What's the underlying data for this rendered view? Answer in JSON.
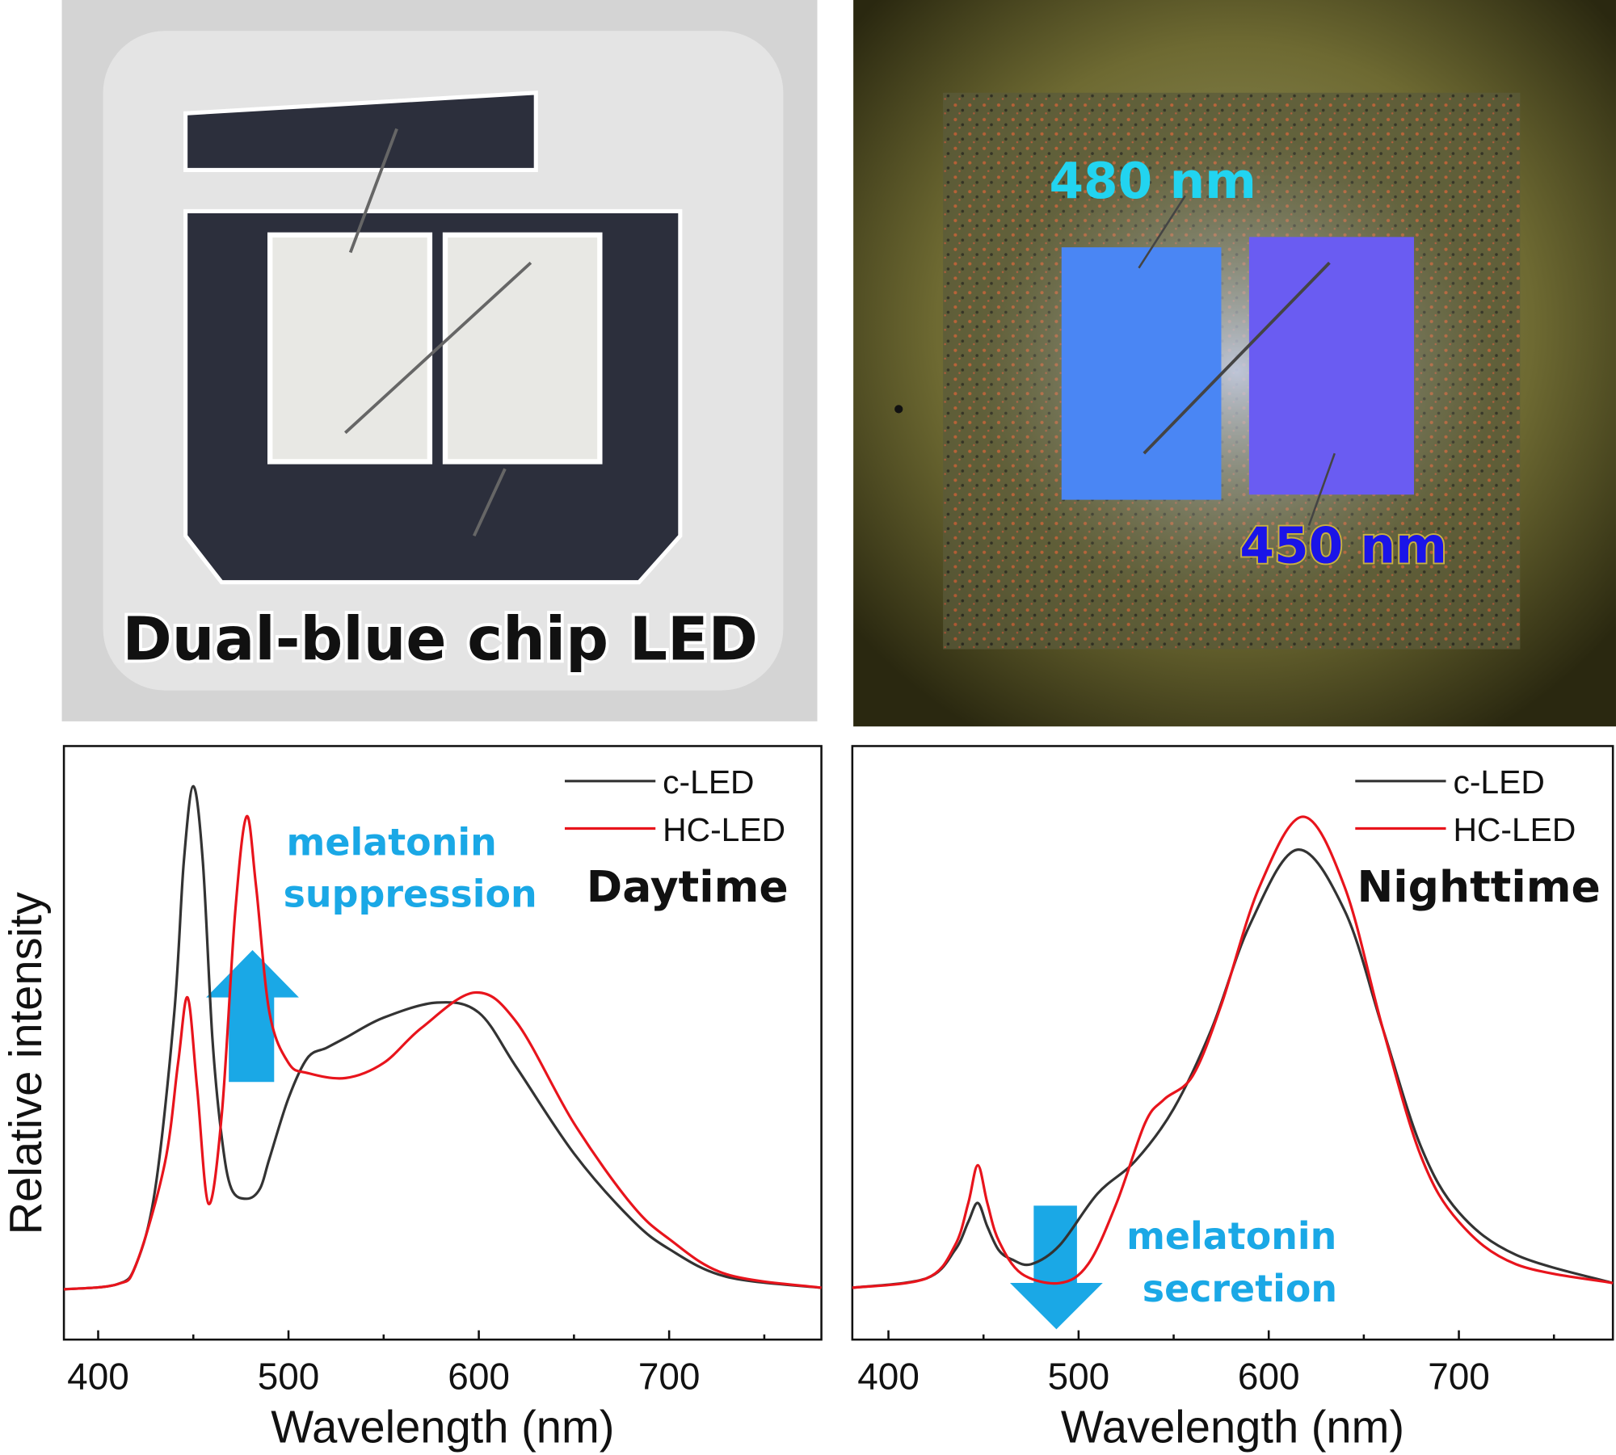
{
  "photos": {
    "left": {
      "caption": "Dual-blue chip LED"
    },
    "right": {
      "label_480": "480 nm",
      "label_450": "450 nm",
      "color_480": "#22d4f0",
      "color_450": "#1a14e8"
    }
  },
  "colors": {
    "c_led": "#333333",
    "hc_led": "#e8141c",
    "annotation": "#1aa8e6"
  },
  "chart_data": [
    {
      "type": "line",
      "title": "Daytime",
      "xlabel": "Wavelength (nm)",
      "ylabel": "Relative intensity",
      "xlim": [
        382,
        780
      ],
      "ylim": [
        -0.1,
        1.08
      ],
      "xticks": [
        400,
        500,
        600,
        700
      ],
      "yticks": [],
      "grid": false,
      "legend": "top-right",
      "annotation": {
        "text_line1": "melatonin",
        "text_line2": "suppression",
        "arrow": "up"
      },
      "series": [
        {
          "name": "c-LED",
          "color": "#333333",
          "x": [
            382,
            410,
            420,
            430,
            440,
            445,
            450,
            455,
            460,
            465,
            470,
            478,
            485,
            490,
            500,
            510,
            520,
            530,
            550,
            578,
            600,
            620,
            650,
            680,
            700,
            730,
            780
          ],
          "y": [
            0,
            0.01,
            0.05,
            0.2,
            0.55,
            0.85,
            1.0,
            0.85,
            0.5,
            0.3,
            0.2,
            0.18,
            0.2,
            0.26,
            0.38,
            0.46,
            0.48,
            0.5,
            0.54,
            0.57,
            0.55,
            0.44,
            0.27,
            0.14,
            0.08,
            0.025,
            0.003
          ]
        },
        {
          "name": "HC-LED",
          "color": "#e8141c",
          "x": [
            382,
            410,
            420,
            435,
            442,
            447,
            452,
            458,
            465,
            472,
            478,
            483,
            490,
            500,
            510,
            530,
            550,
            570,
            598,
            620,
            650,
            680,
            700,
            730,
            780
          ],
          "y": [
            0,
            0.01,
            0.05,
            0.25,
            0.45,
            0.58,
            0.4,
            0.17,
            0.35,
            0.75,
            0.94,
            0.8,
            0.55,
            0.45,
            0.43,
            0.42,
            0.45,
            0.52,
            0.59,
            0.53,
            0.33,
            0.17,
            0.1,
            0.03,
            0.003
          ]
        }
      ]
    },
    {
      "type": "line",
      "title": "Nighttime",
      "xlabel": "Wavelength (nm)",
      "ylabel": "",
      "xlim": [
        381,
        781
      ],
      "ylim": [
        -0.11,
        1.15
      ],
      "xticks": [
        400,
        500,
        600,
        700
      ],
      "yticks": [],
      "grid": false,
      "legend": "top-right",
      "annotation": {
        "text_line1": "melatonin",
        "text_line2": "secretion",
        "arrow": "down"
      },
      "series": [
        {
          "name": "c-LED",
          "color": "#333333",
          "x": [
            381,
            420,
            435,
            442,
            447,
            452,
            458,
            465,
            475,
            490,
            510,
            530,
            550,
            570,
            590,
            615,
            640,
            660,
            680,
            700,
            730,
            781
          ],
          "y": [
            0,
            0.02,
            0.08,
            0.14,
            0.18,
            0.13,
            0.08,
            0.06,
            0.05,
            0.09,
            0.2,
            0.27,
            0.38,
            0.55,
            0.77,
            0.93,
            0.8,
            0.55,
            0.3,
            0.16,
            0.07,
            0.01
          ]
        },
        {
          "name": "HC-LED",
          "color": "#e8141c",
          "x": [
            381,
            420,
            435,
            442,
            447,
            452,
            458,
            470,
            490,
            505,
            520,
            535,
            545,
            560,
            575,
            595,
            618,
            640,
            660,
            680,
            700,
            730,
            781
          ],
          "y": [
            0,
            0.02,
            0.09,
            0.18,
            0.26,
            0.18,
            0.1,
            0.03,
            0.01,
            0.05,
            0.18,
            0.35,
            0.4,
            0.45,
            0.6,
            0.85,
            1.0,
            0.85,
            0.55,
            0.28,
            0.14,
            0.05,
            0.01
          ]
        }
      ]
    }
  ]
}
